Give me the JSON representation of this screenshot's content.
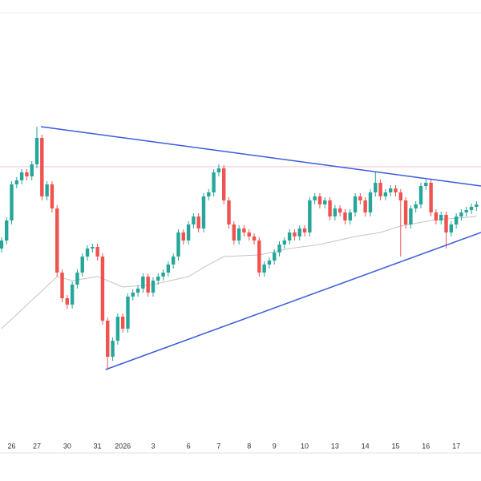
{
  "chart_data": {
    "type": "candlestick",
    "open": [
      290,
      300,
      325,
      370,
      375,
      385,
      380,
      395,
      428,
      355,
      370,
      340,
      260,
      228,
      220,
      245,
      260,
      280,
      290,
      292,
      280,
      200,
      155,
      175,
      205,
      190,
      230,
      235,
      240,
      255,
      235,
      250,
      255,
      260,
      270,
      280,
      310,
      300,
      320,
      330,
      315,
      355,
      360,
      385,
      390,
      350,
      320,
      300,
      315,
      310,
      305,
      300,
      260,
      270,
      275,
      285,
      295,
      300,
      310,
      305,
      315,
      310,
      350,
      355,
      345,
      350,
      330,
      340,
      335,
      325,
      335,
      355,
      350,
      335,
      360,
      372,
      355,
      360,
      365,
      360,
      350,
      320,
      340,
      345,
      368,
      372,
      335,
      325,
      332,
      310,
      320,
      330,
      335,
      338,
      342
    ],
    "high": [
      304,
      329,
      374,
      379,
      389,
      389,
      399,
      442,
      432,
      374,
      374,
      344,
      264,
      232,
      249,
      264,
      284,
      294,
      296,
      296,
      284,
      204,
      179,
      209,
      209,
      234,
      239,
      244,
      259,
      259,
      254,
      259,
      264,
      274,
      284,
      314,
      314,
      324,
      334,
      334,
      359,
      364,
      389,
      395,
      394,
      354,
      324,
      319,
      319,
      314,
      309,
      304,
      274,
      279,
      289,
      299,
      304,
      314,
      314,
      319,
      319,
      354,
      359,
      359,
      354,
      354,
      344,
      344,
      339,
      339,
      359,
      359,
      354,
      364,
      385,
      376,
      364,
      369,
      369,
      364,
      354,
      344,
      349,
      372,
      376,
      376,
      339,
      336,
      336,
      324,
      334,
      339,
      342,
      346,
      349
    ],
    "low": [
      285,
      295,
      320,
      365,
      370,
      375,
      375,
      390,
      350,
      350,
      335,
      255,
      223,
      215,
      215,
      240,
      255,
      275,
      285,
      275,
      195,
      140,
      150,
      170,
      185,
      185,
      225,
      230,
      235,
      230,
      230,
      245,
      250,
      255,
      265,
      275,
      295,
      295,
      315,
      310,
      310,
      350,
      355,
      380,
      345,
      315,
      295,
      295,
      305,
      300,
      295,
      255,
      255,
      265,
      270,
      280,
      290,
      295,
      300,
      300,
      305,
      305,
      345,
      340,
      340,
      325,
      325,
      330,
      320,
      320,
      330,
      345,
      330,
      330,
      355,
      350,
      350,
      355,
      355,
      280,
      315,
      315,
      335,
      340,
      363,
      330,
      320,
      320,
      290,
      305,
      315,
      325,
      330,
      333,
      337
    ],
    "close": [
      300,
      325,
      370,
      375,
      385,
      380,
      395,
      428,
      355,
      370,
      340,
      260,
      228,
      220,
      245,
      260,
      280,
      290,
      292,
      280,
      200,
      155,
      175,
      205,
      190,
      230,
      235,
      240,
      255,
      235,
      250,
      255,
      260,
      270,
      280,
      310,
      300,
      320,
      330,
      315,
      355,
      360,
      385,
      390,
      350,
      320,
      300,
      315,
      310,
      305,
      300,
      260,
      270,
      275,
      285,
      295,
      300,
      310,
      305,
      315,
      310,
      350,
      355,
      345,
      350,
      330,
      340,
      335,
      325,
      335,
      355,
      350,
      335,
      360,
      372,
      355,
      360,
      365,
      360,
      350,
      320,
      340,
      345,
      368,
      372,
      335,
      325,
      332,
      310,
      320,
      330,
      335,
      338,
      342,
      345
    ],
    "up_color": "#26a69a",
    "down_color": "#ef5350",
    "moving_average": {
      "x": [
        0,
        11,
        14,
        19,
        24,
        30,
        37,
        41,
        44,
        51,
        57,
        63,
        70,
        75,
        79,
        85,
        94
      ],
      "values": [
        190,
        255,
        250,
        255,
        242,
        245,
        255,
        270,
        280,
        282,
        290,
        295,
        305,
        310,
        318,
        325,
        330
      ],
      "color": "#c4c4c4"
    },
    "trendlines": [
      {
        "x": [
          7.8,
          94.9
        ],
        "values": [
          442,
          368
        ],
        "color": "#3b5bdb"
      },
      {
        "x": [
          20.6,
          94.9
        ],
        "values": [
          139,
          310
        ],
        "color": "#3b5bdb"
      }
    ],
    "hline": {
      "value": 392,
      "color": "#f5c2cf"
    },
    "xlim": [
      -0.3,
      94.9
    ],
    "ylim": [
      35,
      600
    ],
    "xticks": [
      {
        "value": 2,
        "label": "26"
      },
      {
        "value": 7,
        "label": "27"
      },
      {
        "value": 13,
        "label": "30"
      },
      {
        "value": 19,
        "label": "31"
      },
      {
        "value": 24,
        "label": "2026"
      },
      {
        "value": 30,
        "label": "3"
      },
      {
        "value": 37,
        "label": "6"
      },
      {
        "value": 43,
        "label": "7"
      },
      {
        "value": 49,
        "label": "8"
      },
      {
        "value": 54,
        "label": "9"
      },
      {
        "value": 60,
        "label": "10"
      },
      {
        "value": 66,
        "label": "13"
      },
      {
        "value": 72,
        "label": "14"
      },
      {
        "value": 78,
        "label": "15"
      },
      {
        "value": 84,
        "label": "16"
      },
      {
        "value": 90,
        "label": "17"
      }
    ]
  }
}
